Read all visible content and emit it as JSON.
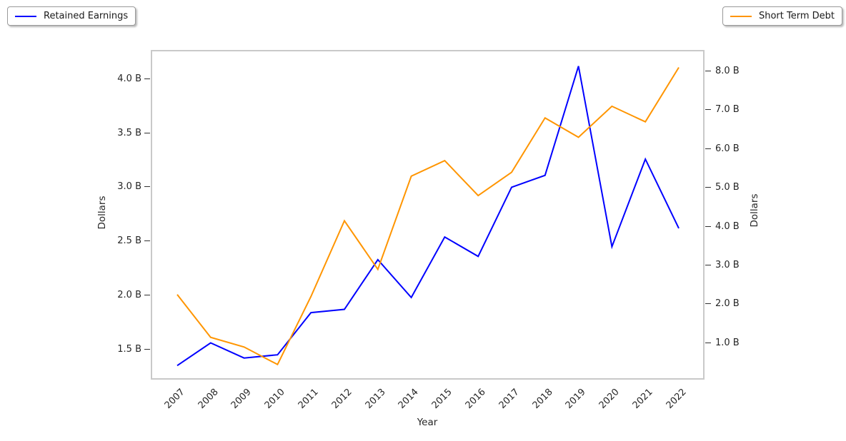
{
  "legend_left": {
    "label": "Retained Earnings",
    "color": "#0000ff"
  },
  "legend_right": {
    "label": "Short Term Debt",
    "color": "#ff9500"
  },
  "axes": {
    "x_label": "Year",
    "y_left_label": "Dollars",
    "y_right_label": "Dollars",
    "y_left_ticks": [
      "1.5 B",
      "2.0 B",
      "2.5 B",
      "3.0 B",
      "3.5 B",
      "4.0 B"
    ],
    "y_right_ticks": [
      "1.0 B",
      "2.0 B",
      "3.0 B",
      "4.0 B",
      "5.0 B",
      "6.0 B",
      "7.0 B",
      "8.0 B"
    ]
  },
  "chart_data": {
    "type": "line",
    "title": "",
    "xlabel": "Year",
    "x": [
      2007,
      2008,
      2009,
      2010,
      2011,
      2012,
      2013,
      2014,
      2015,
      2016,
      2017,
      2018,
      2019,
      2020,
      2021,
      2022
    ],
    "series": [
      {
        "name": "Retained Earnings",
        "axis": "left",
        "color": "#0000ff",
        "unit": "B Dollars",
        "values": [
          1.35,
          1.56,
          1.42,
          1.45,
          1.84,
          1.87,
          2.33,
          1.98,
          2.54,
          2.36,
          3.0,
          3.11,
          4.12,
          2.45,
          3.26,
          2.62
        ]
      },
      {
        "name": "Short Term Debt",
        "axis": "right",
        "color": "#ff9500",
        "unit": "B Dollars",
        "values": [
          2.25,
          1.15,
          0.9,
          0.45,
          2.2,
          4.15,
          2.9,
          5.3,
          5.7,
          4.8,
          5.4,
          6.8,
          6.3,
          7.1,
          6.7,
          8.1
        ]
      }
    ],
    "ylabel_left": "Dollars",
    "ylabel_right": "Dollars",
    "ylim_left": [
      1.22,
      4.27
    ],
    "ylim_right": [
      0.06,
      8.55
    ],
    "yticks_left": [
      1.5,
      2.0,
      2.5,
      3.0,
      3.5,
      4.0
    ],
    "yticks_right": [
      1.0,
      2.0,
      3.0,
      4.0,
      5.0,
      6.0,
      7.0,
      8.0
    ],
    "grid": false,
    "legend_position": "outside top-left (Retained Earnings) and outside top-right (Short Term Debt)"
  }
}
